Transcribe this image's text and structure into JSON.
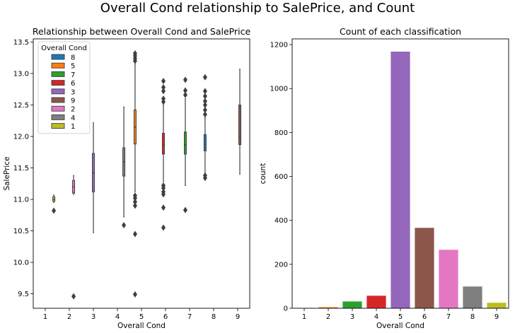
{
  "suptitle": "Overall Cond relationship to SalePrice, and Count",
  "chart_data": [
    {
      "type": "box",
      "title": "Relationship between Overall Cond and SalePrice",
      "xlabel": "Overall Cond",
      "ylabel": "SalePrice",
      "categories": [
        "1",
        "2",
        "3",
        "4",
        "5",
        "6",
        "7",
        "8",
        "9"
      ],
      "yticks": [
        "9.5",
        "10.0",
        "10.5",
        "11.0",
        "11.5",
        "12.0",
        "12.5",
        "13.0",
        "13.5"
      ],
      "ylim": [
        9.27,
        13.55
      ],
      "legend": {
        "title": "Overall Cond",
        "position": "top-left",
        "entries": [
          {
            "label": "8",
            "color": "#1f77b4"
          },
          {
            "label": "5",
            "color": "#ff7f0e"
          },
          {
            "label": "7",
            "color": "#2ca02c"
          },
          {
            "label": "6",
            "color": "#d62728"
          },
          {
            "label": "3",
            "color": "#9467bd"
          },
          {
            "label": "9",
            "color": "#8c564b"
          },
          {
            "label": "2",
            "color": "#e377c2"
          },
          {
            "label": "4",
            "color": "#7f7f7f"
          },
          {
            "label": "1",
            "color": "#bcbd22"
          }
        ]
      },
      "boxes": [
        {
          "category": "1",
          "hue": "1",
          "color": "#bcbd22",
          "whislo": 10.95,
          "q1": 10.97,
          "median": 11.0,
          "q3": 11.04,
          "whishi": 11.07,
          "fliers": [
            10.82
          ]
        },
        {
          "category": "2",
          "hue": "2",
          "color": "#e377c2",
          "whislo": 11.08,
          "q1": 11.1,
          "median": 11.2,
          "q3": 11.3,
          "whishi": 11.38,
          "fliers": [
            9.46
          ]
        },
        {
          "category": "3",
          "hue": "3",
          "color": "#9467bd",
          "whislo": 10.47,
          "q1": 11.12,
          "median": 11.42,
          "q3": 11.73,
          "whishi": 12.22,
          "fliers": []
        },
        {
          "category": "4",
          "hue": "4",
          "color": "#7f7f7f",
          "whislo": 10.72,
          "q1": 11.37,
          "median": 11.6,
          "q3": 11.82,
          "whishi": 12.47,
          "fliers": [
            10.59
          ]
        },
        {
          "category": "5",
          "hue": "5",
          "color": "#ff7f0e",
          "whislo": 11.12,
          "q1": 11.88,
          "median": 12.15,
          "q3": 12.42,
          "whishi": 13.15,
          "fliers": [
            13.2,
            13.24,
            13.28,
            13.32,
            11.06,
            11.02,
            10.96,
            10.9,
            10.45,
            9.49
          ]
        },
        {
          "category": "6",
          "hue": "6",
          "color": "#d62728",
          "whislo": 11.28,
          "q1": 11.72,
          "median": 11.87,
          "q3": 12.05,
          "whishi": 12.5,
          "fliers": [
            12.55,
            12.6,
            12.72,
            12.78,
            12.88,
            11.22,
            11.18,
            11.12,
            11.08,
            10.87,
            10.55
          ]
        },
        {
          "category": "7",
          "hue": "7",
          "color": "#2ca02c",
          "whislo": 11.22,
          "q1": 11.72,
          "median": 11.87,
          "q3": 12.07,
          "whishi": 12.6,
          "fliers": [
            12.66,
            12.73,
            12.9,
            10.83
          ]
        },
        {
          "category": "8",
          "hue": "8",
          "color": "#1f77b4",
          "whislo": 11.4,
          "q1": 11.77,
          "median": 11.88,
          "q3": 12.03,
          "whishi": 12.3,
          "fliers": [
            12.35,
            12.42,
            12.5,
            12.56,
            12.64,
            12.72,
            12.94,
            11.38,
            11.34
          ]
        },
        {
          "category": "9",
          "hue": "9",
          "color": "#8c564b",
          "whislo": 11.4,
          "q1": 11.87,
          "median": 12.0,
          "q3": 12.5,
          "whishi": 13.07,
          "fliers": []
        }
      ]
    },
    {
      "type": "bar",
      "title": "Count of each classification",
      "xlabel": "Overall Cond",
      "ylabel": "count",
      "categories": [
        "1",
        "2",
        "3",
        "4",
        "5",
        "6",
        "7",
        "8",
        "9"
      ],
      "values": [
        1,
        5,
        31,
        57,
        1168,
        366,
        266,
        99,
        25
      ],
      "colors": [
        "#1f77b4",
        "#ff7f0e",
        "#2ca02c",
        "#d62728",
        "#9467bd",
        "#8c564b",
        "#e377c2",
        "#7f7f7f",
        "#bcbd22"
      ],
      "yticks": [
        "0",
        "200",
        "400",
        "600",
        "800",
        "1000",
        "1200"
      ],
      "ylim": [
        0,
        1226
      ]
    }
  ]
}
